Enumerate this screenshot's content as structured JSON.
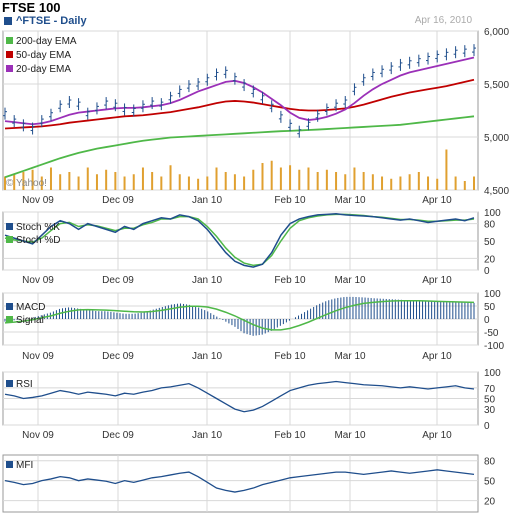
{
  "header": {
    "title": "FTSE 100",
    "subtitle": "^FTSE - Daily",
    "date": "Apr 16, 2010"
  },
  "watermark": "© Yahoo!",
  "colors": {
    "price": "#1f4e8c",
    "ema200": "#4fb848",
    "ema50": "#c00000",
    "ema20": "#9b30b8",
    "volume": "#e0a030",
    "stochD": "#4fb848",
    "macdSignal": "#4fb848",
    "grid": "#d8d8d8"
  },
  "chart_data": [
    {
      "type": "line",
      "panel": "price",
      "x_labels": [
        "Nov 09",
        "Dec 09",
        "Jan 10",
        "Feb 10",
        "Mar 10",
        "Apr 10"
      ],
      "ylim": [
        4500,
        6000
      ],
      "yticks": [
        "6,000",
        "5,500",
        "5,000",
        "4,500"
      ],
      "legend": [
        "200-day EMA",
        "50-day EMA",
        "20-day EMA"
      ],
      "series": [
        {
          "name": "^FTSE",
          "values": [
            5220,
            5150,
            5110,
            5080,
            5150,
            5210,
            5290,
            5330,
            5310,
            5220,
            5270,
            5320,
            5300,
            5260,
            5250,
            5290,
            5320,
            5310,
            5370,
            5430,
            5480,
            5500,
            5540,
            5590,
            5610,
            5550,
            5490,
            5430,
            5370,
            5290,
            5190,
            5110,
            5050,
            5120,
            5200,
            5260,
            5300,
            5330,
            5450,
            5540,
            5590,
            5620,
            5650,
            5680,
            5700,
            5720,
            5740,
            5760,
            5780,
            5800,
            5810,
            5820
          ]
        },
        {
          "name": "200-day EMA",
          "values": [
            4620,
            4650,
            4680,
            4710,
            4740,
            4770,
            4800,
            4825,
            4850,
            4870,
            4890,
            4905,
            4920,
            4935,
            4950,
            4965,
            4975,
            4985,
            4995,
            5000,
            5005,
            5010,
            5015,
            5020,
            5025,
            5030,
            5035,
            5040,
            5045,
            5050,
            5055,
            5058,
            5062,
            5066,
            5070,
            5075,
            5080,
            5085,
            5090,
            5095,
            5100,
            5105,
            5110,
            5115,
            5125,
            5135,
            5145,
            5155,
            5165,
            5175,
            5185,
            5195
          ]
        },
        {
          "name": "50-day EMA",
          "values": [
            5080,
            5085,
            5090,
            5095,
            5100,
            5110,
            5120,
            5135,
            5145,
            5155,
            5165,
            5175,
            5185,
            5195,
            5200,
            5205,
            5215,
            5225,
            5235,
            5250,
            5265,
            5280,
            5300,
            5320,
            5335,
            5340,
            5335,
            5325,
            5310,
            5295,
            5280,
            5265,
            5255,
            5250,
            5250,
            5255,
            5262,
            5270,
            5285,
            5305,
            5330,
            5355,
            5380,
            5400,
            5420,
            5435,
            5450,
            5465,
            5480,
            5500,
            5520,
            5540
          ]
        },
        {
          "name": "20-day EMA",
          "values": [
            5150,
            5140,
            5130,
            5120,
            5130,
            5150,
            5180,
            5210,
            5230,
            5240,
            5250,
            5260,
            5270,
            5275,
            5275,
            5280,
            5290,
            5300,
            5320,
            5350,
            5390,
            5430,
            5460,
            5490,
            5520,
            5530,
            5510,
            5470,
            5420,
            5360,
            5300,
            5230,
            5180,
            5160,
            5170,
            5190,
            5220,
            5260,
            5320,
            5390,
            5450,
            5500,
            5540,
            5580,
            5610,
            5630,
            5650,
            5670,
            5690,
            5710,
            5730,
            5750
          ]
        }
      ],
      "volume": [
        0.3,
        0.35,
        0.4,
        0.45,
        0.3,
        0.5,
        0.35,
        0.4,
        0.3,
        0.5,
        0.35,
        0.45,
        0.4,
        0.3,
        0.35,
        0.5,
        0.4,
        0.3,
        0.55,
        0.35,
        0.3,
        0.25,
        0.3,
        0.5,
        0.4,
        0.35,
        0.3,
        0.45,
        0.6,
        0.65,
        0.5,
        0.55,
        0.45,
        0.5,
        0.4,
        0.45,
        0.4,
        0.35,
        0.5,
        0.4,
        0.35,
        0.3,
        0.25,
        0.3,
        0.35,
        0.4,
        0.3,
        0.25,
        0.9,
        0.3,
        0.2,
        0.3
      ]
    },
    {
      "type": "line",
      "panel": "stochastic",
      "ylim": [
        0,
        100
      ],
      "yticks": [
        "100",
        "80",
        "50",
        "20",
        "0"
      ],
      "legend": [
        "Stoch %K",
        "Stoch %D"
      ],
      "series": [
        {
          "name": "Stoch %K",
          "values": [
            60,
            55,
            50,
            45,
            60,
            75,
            85,
            80,
            70,
            80,
            75,
            70,
            65,
            75,
            70,
            80,
            85,
            90,
            88,
            95,
            92,
            85,
            70,
            50,
            30,
            15,
            8,
            5,
            10,
            30,
            60,
            80,
            88,
            92,
            95,
            96,
            97,
            95,
            94,
            93,
            92,
            90,
            88,
            86,
            88,
            85,
            82,
            84,
            86,
            88,
            85,
            90
          ]
        },
        {
          "name": "Stoch %D",
          "values": [
            55,
            52,
            50,
            48,
            55,
            68,
            80,
            82,
            75,
            78,
            76,
            72,
            68,
            72,
            72,
            78,
            82,
            88,
            88,
            92,
            92,
            88,
            75,
            58,
            38,
            22,
            12,
            8,
            10,
            25,
            50,
            72,
            85,
            90,
            93,
            95,
            96,
            96,
            95,
            94,
            92,
            91,
            89,
            87,
            87,
            86,
            84,
            84,
            85,
            86,
            86,
            88
          ]
        }
      ]
    },
    {
      "type": "bar",
      "panel": "macd",
      "ylim": [
        -100,
        100
      ],
      "yticks": [
        "100",
        "50",
        "0",
        "-50",
        "-100"
      ],
      "legend": [
        "MACD",
        "Signal"
      ],
      "series": [
        {
          "name": "MACD",
          "values": [
            -10,
            -5,
            0,
            5,
            15,
            25,
            40,
            45,
            40,
            35,
            30,
            30,
            25,
            20,
            20,
            25,
            35,
            45,
            55,
            60,
            55,
            45,
            30,
            10,
            -10,
            -30,
            -55,
            -65,
            -60,
            -45,
            -25,
            -5,
            15,
            35,
            55,
            70,
            80,
            85,
            85,
            83,
            80,
            78,
            76,
            74,
            72,
            70,
            68,
            66,
            65,
            64,
            63,
            62
          ]
        },
        {
          "name": "Signal",
          "values": [
            -15,
            -12,
            -8,
            -3,
            5,
            12,
            22,
            30,
            35,
            36,
            35,
            34,
            32,
            30,
            28,
            27,
            29,
            33,
            39,
            45,
            49,
            49,
            46,
            38,
            26,
            12,
            -5,
            -22,
            -35,
            -42,
            -42,
            -36,
            -25,
            -12,
            3,
            18,
            32,
            44,
            53,
            60,
            64,
            67,
            69,
            70,
            70,
            70,
            69,
            68,
            67,
            66,
            65,
            64
          ]
        }
      ]
    },
    {
      "type": "line",
      "panel": "rsi",
      "ylim": [
        0,
        100
      ],
      "yticks": [
        "100",
        "70",
        "50",
        "30",
        "0"
      ],
      "legend": [
        "RSI"
      ],
      "series": [
        {
          "name": "RSI",
          "values": [
            58,
            55,
            50,
            52,
            55,
            60,
            65,
            62,
            58,
            62,
            60,
            58,
            55,
            60,
            58,
            62,
            65,
            70,
            72,
            75,
            78,
            70,
            60,
            50,
            40,
            30,
            25,
            28,
            35,
            45,
            55,
            65,
            70,
            75,
            78,
            80,
            82,
            80,
            78,
            76,
            75,
            74,
            72,
            70,
            72,
            70,
            68,
            70,
            72,
            74,
            70,
            68
          ]
        }
      ]
    },
    {
      "type": "line",
      "panel": "mfi",
      "ylim": [
        0,
        100
      ],
      "yticks": [
        "80",
        "50",
        "20"
      ],
      "legend": [
        "MFI"
      ],
      "series": [
        {
          "name": "MFI",
          "values": [
            55,
            52,
            48,
            50,
            55,
            58,
            62,
            60,
            55,
            58,
            56,
            54,
            50,
            55,
            52,
            56,
            60,
            62,
            65,
            68,
            70,
            62,
            52,
            42,
            38,
            35,
            38,
            42,
            48,
            52,
            56,
            60,
            62,
            64,
            66,
            68,
            70,
            70,
            68,
            66,
            68,
            70,
            72,
            70,
            68,
            70,
            72,
            74,
            72,
            70,
            68,
            66
          ]
        }
      ]
    }
  ]
}
